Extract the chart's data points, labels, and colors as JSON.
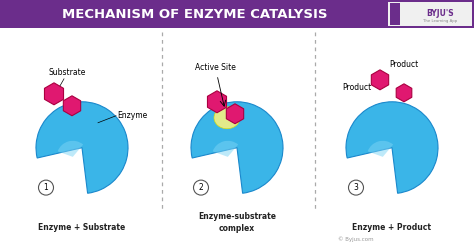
{
  "title": "MECHANISM OF ENZYME CATALYSIS",
  "title_bg": "#6b2d8b",
  "title_color": "#ffffff",
  "bg_color": "#ffffff",
  "enzyme_color": "#3ab5e8",
  "substrate_color": "#e01870",
  "active_site_color": "#f5f080",
  "labels": {
    "panel1_top": "Substrate",
    "panel1_side": "Enzyme",
    "panel2_top": "Active Site",
    "panel3_top": "Product",
    "panel3_side": "Product"
  },
  "captions": [
    "Enzyme + Substrate",
    "Enzyme-substrate complex",
    "Enzyme + Product"
  ],
  "numbers": [
    "1",
    "2",
    "3"
  ],
  "dotted_line_color": "#aaaaaa",
  "number_circle_color": "#ffffff",
  "number_circle_edge": "#555555",
  "watermark": "© Byjus.com",
  "caption_color": "#222222"
}
